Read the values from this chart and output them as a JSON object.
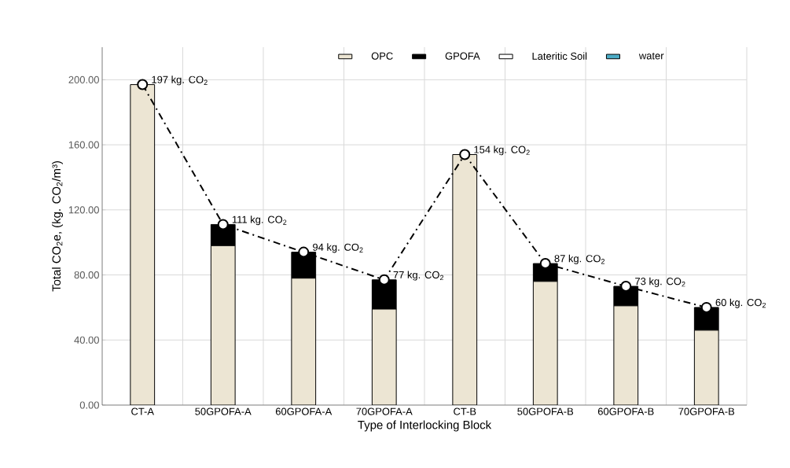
{
  "chart_data": {
    "type": "bar",
    "stacked": true,
    "xlabel": "Type of Interlocking Block",
    "ylabel": "Total CO$_{2}$e, (kg. CO$_{2}$/m³)",
    "categories": [
      "CT-A",
      "50GPOFA-A",
      "60GPOFA-A",
      "70GPOFA-A",
      "CT-B",
      "50GPOFA-B",
      "60GPOFA-B",
      "70GPOFA-B"
    ],
    "series": [
      {
        "name": "OPC",
        "color": "#ece5d3",
        "values": [
          197,
          98,
          78,
          59,
          154,
          76,
          61,
          46
        ]
      },
      {
        "name": "GPOFA",
        "color": "#000000",
        "values": [
          0,
          13,
          16,
          18,
          0,
          11,
          12,
          14
        ]
      },
      {
        "name": "Lateritic Soil",
        "color": "#ffffff",
        "values": [
          0,
          0,
          0,
          0,
          0,
          0,
          0,
          0
        ]
      },
      {
        "name": "water",
        "color": "#4bacc6",
        "values": [
          0,
          0,
          0,
          0,
          0,
          0,
          0,
          0
        ]
      },
      {
        "type": "line",
        "color": "#000000",
        "marker": "circle",
        "line_style": "dashdot",
        "values": [
          197,
          111,
          94,
          77,
          154,
          87,
          73,
          60
        ],
        "value_labels": [
          "197 kg. CO$_{2}$",
          "111 kg. CO$_{2}$",
          "94 kg. CO$_{2}$",
          "77 kg. CO$_{2}$",
          "154 kg. CO$_{2}$",
          "87 kg. CO$_{2}$",
          "73 kg. CO$_{2}$",
          "60 kg. CO$_{2}$"
        ]
      }
    ],
    "ylim": [
      0,
      220
    ],
    "yticks": [
      {
        "value": 0,
        "label": "0.00"
      },
      {
        "value": 40,
        "label": "40.00"
      },
      {
        "value": 80,
        "label": "80.00"
      },
      {
        "value": 120,
        "label": "120.00"
      },
      {
        "value": 160,
        "label": "160.00"
      },
      {
        "value": 200,
        "label": "200.00"
      }
    ],
    "grid": true,
    "legend": "top"
  }
}
